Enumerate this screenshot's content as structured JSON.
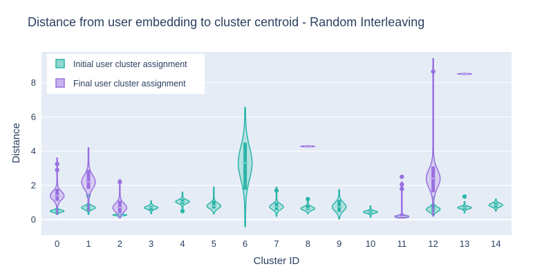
{
  "chart_data": {
    "type": "violin",
    "title": "Distance from user embedding to cluster centroid - Random Interleaving",
    "xlabel": "Cluster ID",
    "ylabel": "Distance",
    "categories": [
      "0",
      "1",
      "2",
      "3",
      "4",
      "5",
      "6",
      "7",
      "8",
      "9",
      "10",
      "11",
      "12",
      "13",
      "14"
    ],
    "ylim": [
      -0.9,
      9.8
    ],
    "yticks": [
      0,
      2,
      4,
      6,
      8
    ],
    "grid": true,
    "legend_position": "top-left",
    "colors": {
      "plot_bg": "#e5ecf6",
      "grid": "#ffffff",
      "initial": "#2bb5a9",
      "initial_fill": "#8fd8cf",
      "final": "#9a6fe0",
      "final_fill": "#c8b3ef"
    },
    "series": [
      {
        "name": "Initial user cluster assignment",
        "key": "initial",
        "clusters": [
          {
            "x": "0",
            "min": 0.3,
            "q1": 0.4,
            "median": 0.5,
            "q3": 0.6,
            "max": 0.8,
            "outliers": []
          },
          {
            "x": "1",
            "min": 0.3,
            "q1": 0.55,
            "median": 0.7,
            "q3": 0.85,
            "max": 1.2,
            "outliers": [
              1.4
            ]
          },
          {
            "x": "2",
            "min": 0.15,
            "q1": 0.22,
            "median": 0.27,
            "q3": 0.32,
            "max": 0.45,
            "outliers": []
          },
          {
            "x": "3",
            "min": 0.35,
            "q1": 0.55,
            "median": 0.7,
            "q3": 0.8,
            "max": 1.1,
            "outliers": []
          },
          {
            "x": "4",
            "min": 0.55,
            "q1": 0.9,
            "median": 1.05,
            "q3": 1.2,
            "max": 1.6,
            "outliers": [
              0.5
            ]
          },
          {
            "x": "5",
            "min": 0.35,
            "q1": 0.65,
            "median": 0.8,
            "q3": 1.1,
            "max": 1.9,
            "outliers": []
          },
          {
            "x": "6",
            "min": -0.4,
            "q1": 1.75,
            "median": 3.3,
            "q3": 4.5,
            "max": 6.55,
            "outliers": []
          },
          {
            "x": "7",
            "min": 0.2,
            "q1": 0.55,
            "median": 0.75,
            "q3": 1.0,
            "max": 1.9,
            "outliers": [
              1.7
            ]
          },
          {
            "x": "8",
            "min": 0.35,
            "q1": 0.55,
            "median": 0.65,
            "q3": 0.85,
            "max": 1.05,
            "outliers": [
              1.2
            ]
          },
          {
            "x": "9",
            "min": 0.05,
            "q1": 0.45,
            "median": 0.75,
            "q3": 1.15,
            "max": 1.75,
            "outliers": []
          },
          {
            "x": "10",
            "min": 0.15,
            "q1": 0.35,
            "median": 0.45,
            "q3": 0.55,
            "max": 0.8,
            "outliers": []
          },
          {
            "x": "11",
            "min": 0.1,
            "q1": 0.15,
            "median": 0.2,
            "q3": 0.25,
            "max": 0.3,
            "outliers": [
              1.8
            ]
          },
          {
            "x": "12",
            "min": 0.25,
            "q1": 0.45,
            "median": 0.6,
            "q3": 0.85,
            "max": 1.35,
            "outliers": []
          },
          {
            "x": "13",
            "min": 0.4,
            "q1": 0.6,
            "median": 0.7,
            "q3": 0.8,
            "max": 1.05,
            "outliers": [
              1.35
            ]
          },
          {
            "x": "14",
            "min": 0.5,
            "q1": 0.7,
            "median": 0.85,
            "q3": 1.0,
            "max": 1.2,
            "outliers": []
          }
        ]
      },
      {
        "name": "Final user cluster assignment",
        "key": "final",
        "clusters": [
          {
            "x": "0",
            "min": 0.3,
            "q1": 1.1,
            "median": 1.4,
            "q3": 1.8,
            "max": 3.6,
            "outliers": [
              2.9,
              3.25
            ]
          },
          {
            "x": "1",
            "min": 0.5,
            "q1": 1.8,
            "median": 2.2,
            "q3": 2.9,
            "max": 4.2,
            "outliers": []
          },
          {
            "x": "2",
            "min": 0.1,
            "q1": 0.4,
            "median": 0.7,
            "q3": 1.1,
            "max": 2.35,
            "outliers": [
              2.2
            ]
          },
          {
            "x": "8",
            "min": 4.25,
            "q1": 4.27,
            "median": 4.28,
            "q3": 4.3,
            "max": 4.32,
            "outliers": []
          },
          {
            "x": "11",
            "min": 0.1,
            "q1": 0.12,
            "median": 0.18,
            "q3": 0.3,
            "max": 2.2,
            "outliers": [
              1.8,
              2.05,
              2.5
            ]
          },
          {
            "x": "12",
            "min": 0.2,
            "q1": 1.6,
            "median": 2.4,
            "q3": 3.1,
            "max": 9.4,
            "outliers": [
              8.65
            ]
          },
          {
            "x": "13",
            "min": 8.48,
            "q1": 8.5,
            "median": 8.51,
            "q3": 8.53,
            "max": 8.55,
            "outliers": []
          }
        ]
      }
    ]
  }
}
